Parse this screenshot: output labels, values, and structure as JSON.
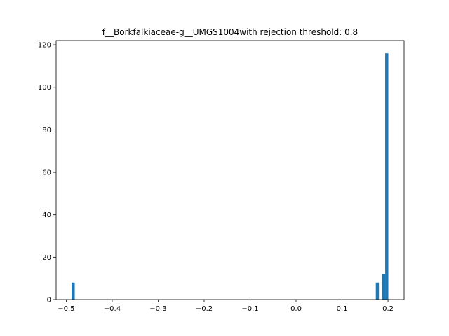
{
  "chart_data": {
    "type": "bar",
    "title": "f__Borkfalkiaceae-g__UMGS1004with rejection threshold: 0.8",
    "xlabel": "",
    "ylabel": "",
    "xlim": [
      -0.522,
      0.235
    ],
    "ylim": [
      0,
      122
    ],
    "x_ticks": [
      -0.5,
      -0.4,
      -0.3,
      -0.2,
      -0.1,
      0.0,
      0.1,
      0.2
    ],
    "x_tick_labels": [
      "−0.5",
      "−0.4",
      "−0.3",
      "−0.2",
      "−0.1",
      "0.0",
      "0.1",
      "0.2"
    ],
    "y_ticks": [
      0,
      20,
      40,
      60,
      80,
      100,
      120
    ],
    "y_tick_labels": [
      "0",
      "20",
      "40",
      "60",
      "80",
      "100",
      "120"
    ],
    "bar_width": 0.0068,
    "bars": [
      {
        "x": -0.4883,
        "value": 8
      },
      {
        "x": 0.1735,
        "value": 8
      },
      {
        "x": 0.1871,
        "value": 12
      },
      {
        "x": 0.1939,
        "value": 116
      }
    ],
    "bar_color": "#1f77b4",
    "grid": false,
    "legend": "none"
  }
}
